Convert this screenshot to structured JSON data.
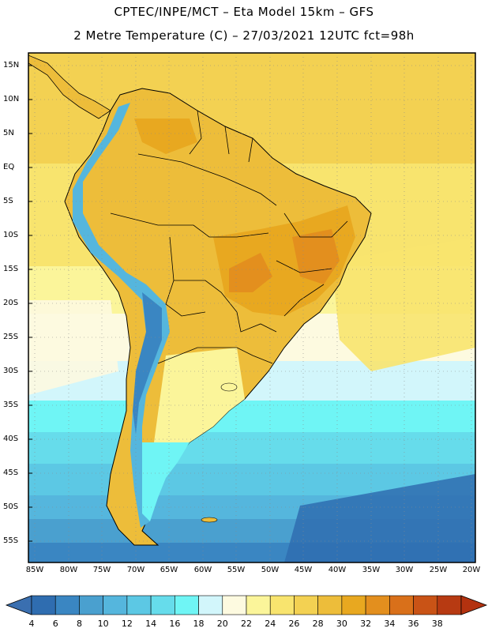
{
  "header": {
    "line1": "CPTEC/INPE/MCT –  Eta Model 15km – GFS",
    "line2": "2 Metre Temperature (C) – 27/03/2021 12UTC fct=98h"
  },
  "map": {
    "lat_labels": [
      "15N",
      "10N",
      "5N",
      "EQ",
      "5S",
      "10S",
      "15S",
      "20S",
      "25S",
      "30S",
      "35S",
      "40S",
      "45S",
      "50S",
      "55S"
    ],
    "lon_labels": [
      "85W",
      "80W",
      "75W",
      "70W",
      "65W",
      "60W",
      "55W",
      "50W",
      "45W",
      "40W",
      "35W",
      "30W",
      "25W",
      "20W"
    ]
  },
  "colorbar": {
    "labels": [
      "4",
      "6",
      "8",
      "10",
      "12",
      "14",
      "16",
      "18",
      "20",
      "22",
      "24",
      "26",
      "28",
      "30",
      "32",
      "34",
      "36",
      "38"
    ],
    "colors": [
      "#2f6db0",
      "#3a86c2",
      "#4aa0cf",
      "#55b6dd",
      "#5cc8e4",
      "#66dceb",
      "#6ff5f5",
      "#d2f6fb",
      "#fdfae0",
      "#fbf59a",
      "#f8e46e",
      "#f3d152",
      "#edbd3a",
      "#e8a820",
      "#e38f1e",
      "#d9701a",
      "#c95316",
      "#b73a12"
    ],
    "left_arrow_color": "#3a6fb0",
    "right_arrow_color": "#b3320f"
  }
}
